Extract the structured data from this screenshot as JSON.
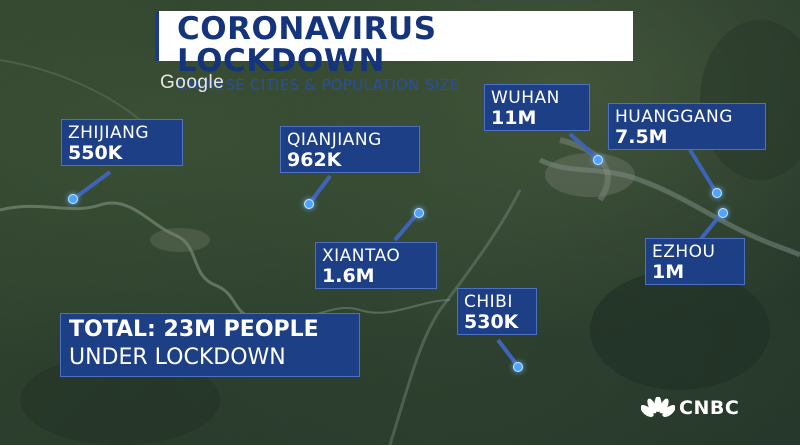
{
  "title": {
    "main": "CORONAVIRUS LOCKDOWN",
    "sub": "CHINESE CITIES & POPULATION SIZE"
  },
  "map_attribution": "Google",
  "broadcaster": "CNBC",
  "cities": [
    {
      "id": "zhijiang",
      "name": "ZHIJIANG",
      "population": "550K"
    },
    {
      "id": "qianjiang",
      "name": "QIANJIANG",
      "population": "962K"
    },
    {
      "id": "xiantao",
      "name": "XIANTAO",
      "population": "1.6M"
    },
    {
      "id": "wuhan",
      "name": "WUHAN",
      "population": "11M"
    },
    {
      "id": "huanggang",
      "name": "HUANGGANG",
      "population": "7.5M"
    },
    {
      "id": "ezhou",
      "name": "EZHOU",
      "population": "1M"
    },
    {
      "id": "chibi",
      "name": "CHIBI",
      "population": "530K"
    }
  ],
  "total": {
    "line1": "TOTAL: 23M PEOPLE",
    "line2": "UNDER LOCKDOWN"
  },
  "colors": {
    "label_bg": "#1d3f86",
    "title_text": "#14347d",
    "marker": "#4ea5ff"
  }
}
